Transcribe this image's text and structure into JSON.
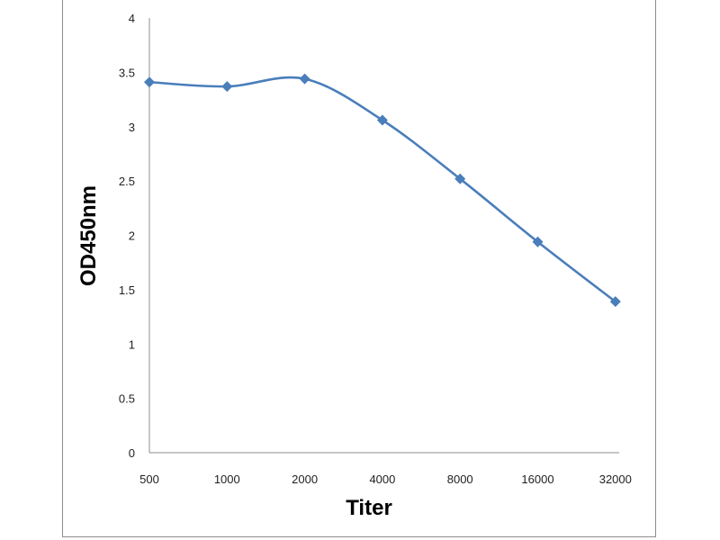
{
  "chart_data": {
    "type": "line",
    "title": "",
    "xlabel": "Titer",
    "ylabel": "OD450nm",
    "categories": [
      "500",
      "1000",
      "2000",
      "4000",
      "8000",
      "16000",
      "32000"
    ],
    "series": [
      {
        "name": "OD450nm",
        "values": [
          3.41,
          3.37,
          3.44,
          3.06,
          2.52,
          1.94,
          1.39
        ],
        "color": "#4a7ebb"
      }
    ],
    "ylim": [
      0,
      4
    ],
    "yticks": [
      "0",
      "0.5",
      "1",
      "1.5",
      "2",
      "2.5",
      "3",
      "3.5",
      "4"
    ],
    "grid": false,
    "legend": "none"
  }
}
